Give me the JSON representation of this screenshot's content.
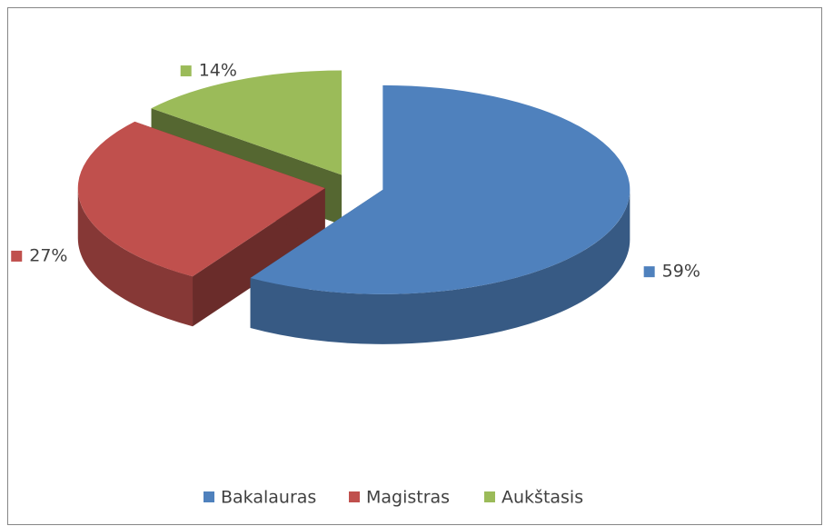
{
  "chart_data": {
    "type": "pie",
    "categories": [
      "Bakalauras",
      "Magistras",
      "Aukštasis"
    ],
    "values": [
      59,
      27,
      14
    ],
    "value_labels": [
      "59%",
      "27%",
      "14%"
    ],
    "colors": [
      "#4f81bd",
      "#c0504d",
      "#9bbb59"
    ],
    "legend": "bottom"
  }
}
